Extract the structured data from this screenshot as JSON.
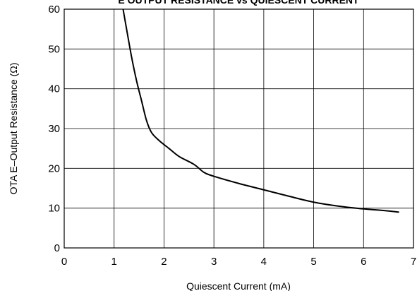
{
  "chart_data": {
    "type": "line",
    "title": "E OUTPUT RESISTANCE vs QUIESCENT CURRENT",
    "xlabel": "Quiescent Current (mA)",
    "ylabel": "OTA E–Output Resistance (Ω)",
    "xlim": [
      0,
      7
    ],
    "ylim": [
      0,
      60
    ],
    "x_ticks": [
      "0",
      "1",
      "2",
      "3",
      "4",
      "5",
      "6",
      "7"
    ],
    "y_ticks": [
      "0",
      "10",
      "20",
      "30",
      "40",
      "50",
      "60"
    ],
    "grid": true,
    "line_color": "#000000",
    "series": [
      {
        "x": [
          1.18,
          1.25,
          1.35,
          1.45,
          1.55,
          1.65,
          1.75,
          1.9,
          2.1,
          2.3,
          2.6,
          2.8,
          3.0,
          3.5,
          4.0,
          4.5,
          5.0,
          5.5,
          6.0,
          6.4,
          6.7
        ],
        "y": [
          60,
          55,
          48,
          42,
          37,
          32,
          29,
          27,
          25,
          23,
          21,
          19,
          18,
          16.2,
          14.6,
          13.0,
          11.5,
          10.5,
          9.8,
          9.4,
          9.0
        ]
      }
    ]
  }
}
